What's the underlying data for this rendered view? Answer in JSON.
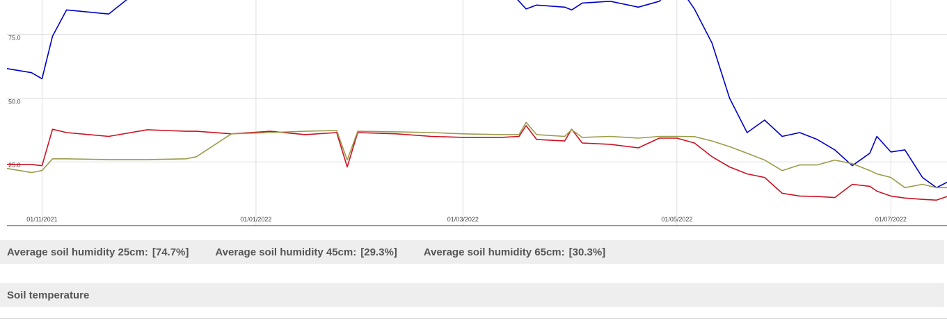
{
  "chart_data": {
    "type": "line",
    "x": [
      "2021-10-22",
      "2021-10-29",
      "2021-11-01",
      "2021-11-04",
      "2021-11-08",
      "2021-11-20",
      "2021-12-01",
      "2021-12-12",
      "2021-12-15",
      "2021-12-25",
      "2022-01-05",
      "2022-01-15",
      "2022-01-24",
      "2022-01-27",
      "2022-01-30",
      "2022-02-10",
      "2022-02-20",
      "2022-03-01",
      "2022-03-12",
      "2022-03-17",
      "2022-03-19",
      "2022-03-22",
      "2022-03-30",
      "2022-04-01",
      "2022-04-04",
      "2022-04-12",
      "2022-04-20",
      "2022-04-26",
      "2022-05-01",
      "2022-05-06",
      "2022-05-11",
      "2022-05-16",
      "2022-05-21",
      "2022-05-26",
      "2022-05-31",
      "2022-06-05",
      "2022-06-10",
      "2022-06-15",
      "2022-06-20",
      "2022-06-25",
      "2022-06-27",
      "2022-07-01",
      "2022-07-05",
      "2022-07-10",
      "2022-07-14",
      "2022-07-17"
    ],
    "series": [
      {
        "color": "#0000cc",
        "values": [
          61.6,
          60,
          57.6,
          74.3,
          84.6,
          83,
          95,
          95,
          95,
          95,
          95,
          95,
          95,
          95,
          95,
          95,
          95,
          95,
          95,
          88,
          85,
          86.5,
          85.7,
          84.6,
          87.3,
          88,
          85.7,
          88,
          95,
          85,
          71.6,
          50,
          36.5,
          41.4,
          35,
          36.5,
          33.8,
          29.7,
          23.5,
          28.4,
          35,
          28.9,
          29.7,
          18.9,
          14.9,
          17
        ]
      },
      {
        "color": "#cc1122",
        "values": [
          24,
          24,
          23.5,
          37.8,
          36.5,
          35,
          37.6,
          37,
          37,
          36,
          37,
          35.7,
          36.5,
          23,
          36.5,
          36,
          35,
          34.6,
          34.6,
          35,
          39.2,
          33.8,
          33.2,
          37.8,
          32.4,
          31.9,
          30.5,
          34.3,
          34.3,
          32.4,
          27,
          23,
          20.3,
          18.9,
          12.7,
          11.6,
          11.4,
          11,
          16.2,
          15.4,
          13.5,
          11.6,
          10.8,
          10.3,
          10,
          11.4
        ]
      },
      {
        "color": "#9b9b4a",
        "values": [
          22.4,
          20.8,
          21.6,
          26.2,
          26.2,
          25.9,
          25.9,
          26.2,
          27,
          36,
          36.5,
          37,
          37.3,
          25.7,
          37,
          36.8,
          36.5,
          36,
          35.7,
          35.7,
          40.5,
          35.7,
          35,
          37.6,
          34.6,
          35,
          34.3,
          35,
          35,
          34.9,
          33.2,
          31,
          28.4,
          25.7,
          21.6,
          23.8,
          23.8,
          25.7,
          24.3,
          21.6,
          20.3,
          18.9,
          14.9,
          16.2,
          14.9,
          14.9
        ]
      }
    ],
    "xlim": [
      "2021-10-22",
      "2022-07-17"
    ],
    "xticks": [
      {
        "value": "2021-11-01",
        "label": "01/11/2021"
      },
      {
        "value": "2022-01-01",
        "label": "01/01/2022"
      },
      {
        "value": "2022-03-01",
        "label": "01/03/2022"
      },
      {
        "value": "2022-05-01",
        "label": "01/05/2022"
      },
      {
        "value": "2022-07-01",
        "label": "01/07/2022"
      }
    ],
    "ylim": [
      0,
      88.5
    ],
    "yticks": [
      {
        "value": 25,
        "label": "25.0"
      },
      {
        "value": 50,
        "label": "50.0"
      },
      {
        "value": 75,
        "label": "75.0"
      }
    ],
    "grid": true
  },
  "summary": [
    {
      "label": "Average soil humidity 25cm:",
      "value": "[74.7%]"
    },
    {
      "label": "Average soil humidity 45cm:",
      "value": "[29.3%]"
    },
    {
      "label": "Average soil humidity 65cm:",
      "value": "[30.3%]"
    }
  ],
  "section": {
    "title": "Soil temperature"
  }
}
